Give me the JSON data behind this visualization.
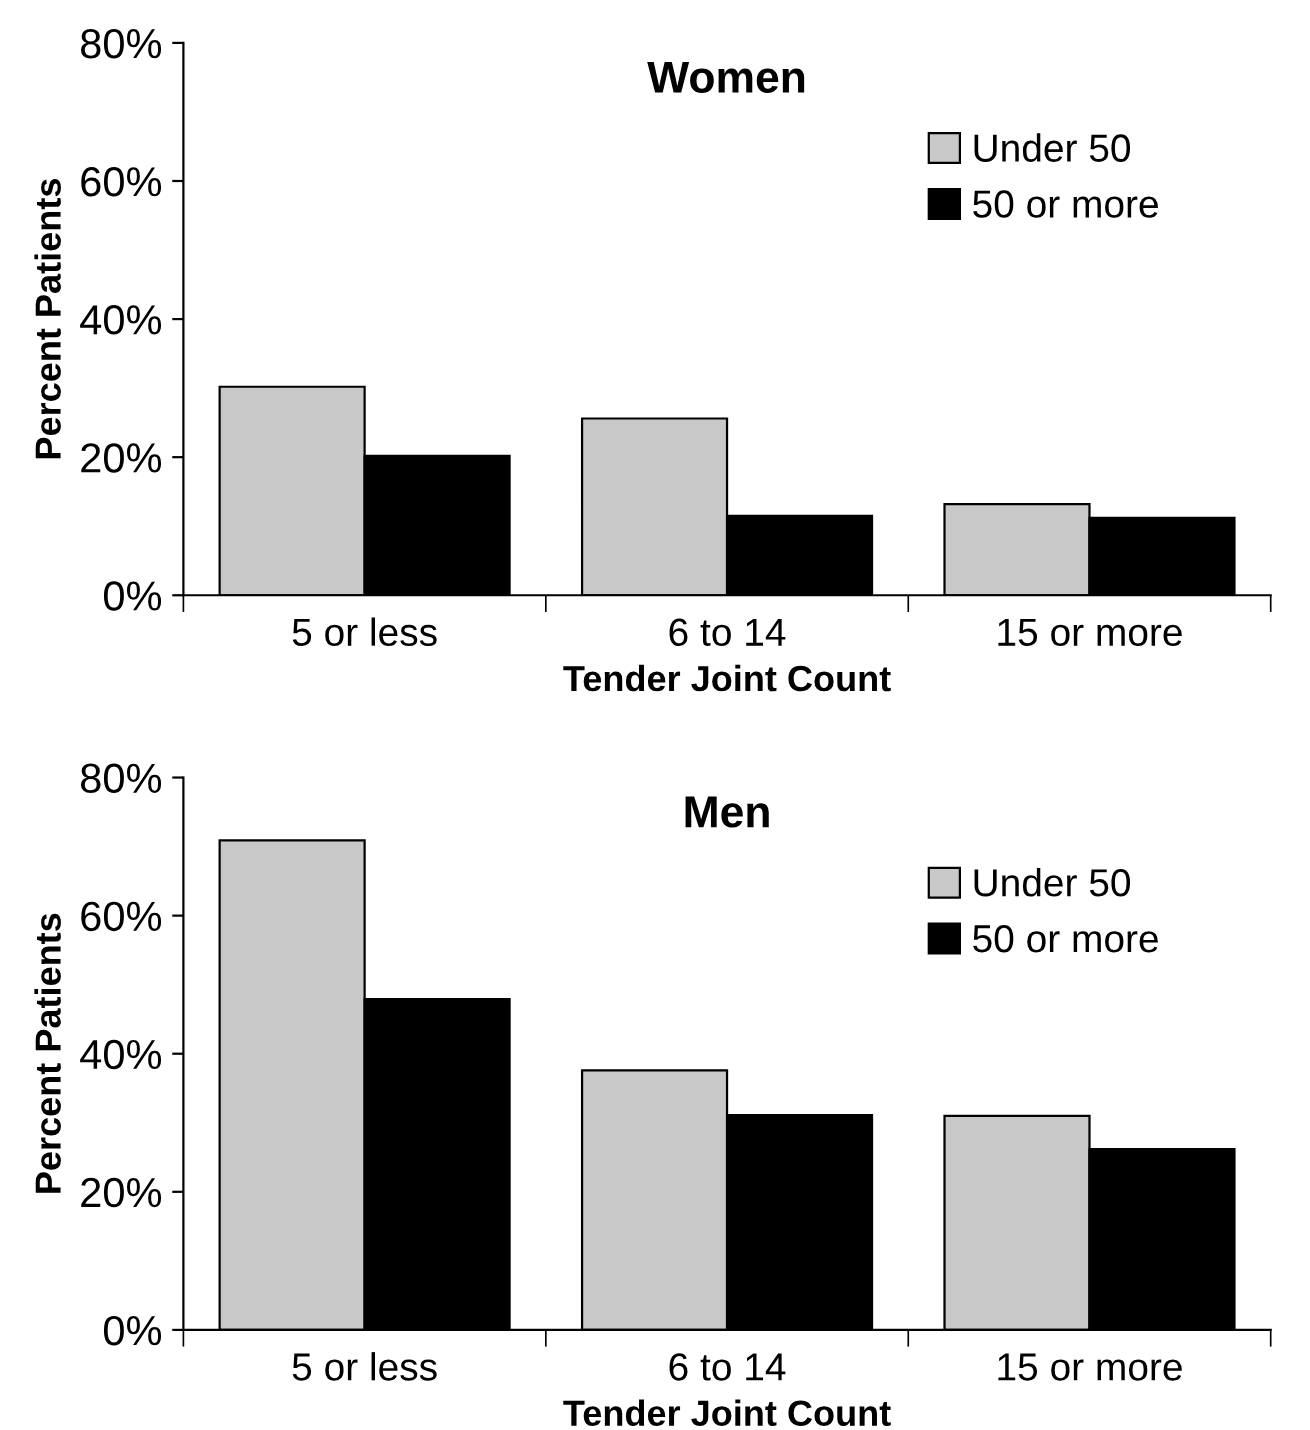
{
  "chart_data": [
    {
      "type": "bar",
      "title": "Women",
      "xlabel": "Tender Joint Count",
      "ylabel": "Percent Patients",
      "categories": [
        "5 or less",
        "6 to 14",
        "15 or more"
      ],
      "series": [
        {
          "name": "Under 50",
          "color": "#c8c8c8",
          "values": [
            30.2,
            25.6,
            13.2
          ]
        },
        {
          "name": "50 or more",
          "color": "#000000",
          "values": [
            20.2,
            11.5,
            11.2
          ]
        }
      ],
      "ylim": [
        0,
        80
      ],
      "yticks": [
        {
          "value": 0,
          "label": "0%"
        },
        {
          "value": 20,
          "label": "20%"
        },
        {
          "value": 40,
          "label": "40%"
        },
        {
          "value": 60,
          "label": "60%"
        },
        {
          "value": 80,
          "label": "80%"
        }
      ],
      "grid": false,
      "legend": "top right"
    },
    {
      "type": "bar",
      "title": "Men",
      "xlabel": "Tender Joint Count",
      "ylabel": "Percent Patients",
      "categories": [
        "5 or less",
        "6 to 14",
        "15 or more"
      ],
      "series": [
        {
          "name": "Under 50",
          "color": "#c8c8c8",
          "values": [
            70.9,
            37.6,
            31.0
          ]
        },
        {
          "name": "50 or more",
          "color": "#000000",
          "values": [
            47.9,
            31.1,
            26.2
          ]
        }
      ],
      "ylim": [
        0,
        80
      ],
      "yticks": [
        {
          "value": 0,
          "label": "0%"
        },
        {
          "value": 20,
          "label": "20%"
        },
        {
          "value": 40,
          "label": "40%"
        },
        {
          "value": 60,
          "label": "60%"
        },
        {
          "value": 80,
          "label": "80%"
        }
      ],
      "grid": false,
      "legend": "top right"
    }
  ]
}
